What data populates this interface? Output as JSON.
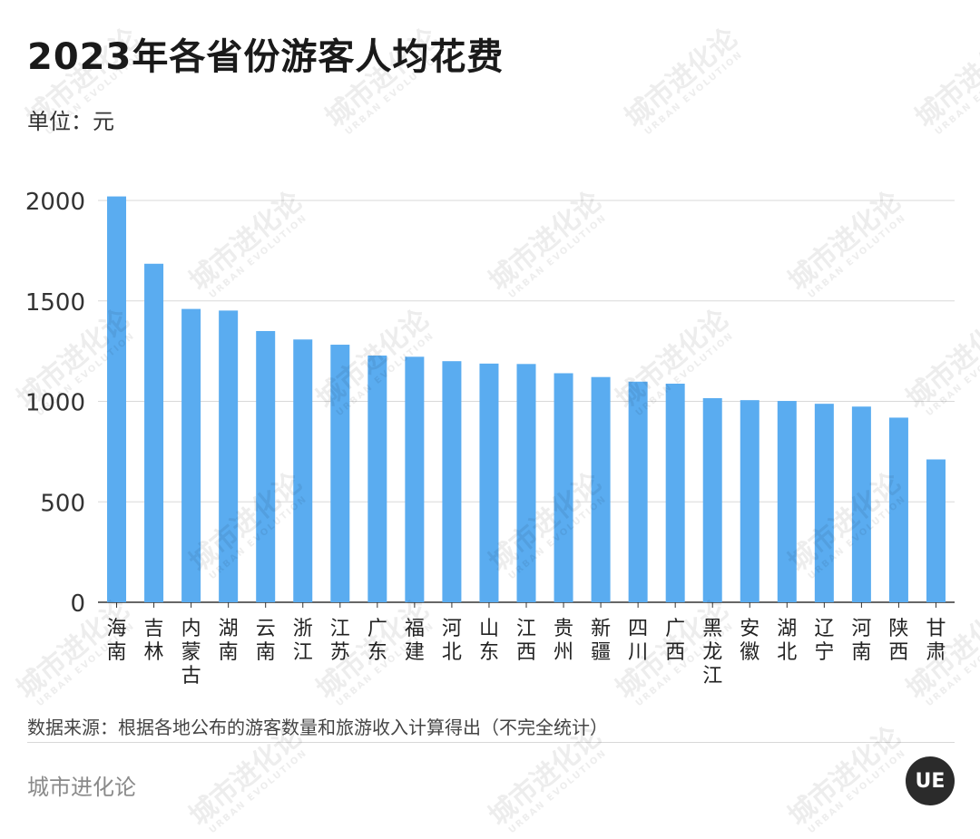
{
  "header": {
    "title": "2023年各省份游客人均花费",
    "unit": "单位：元"
  },
  "footer": {
    "source": "数据来源：根据各地公布的游客数量和旅游收入计算得出（不完全统计）",
    "brand": "城市进化论",
    "logo_text": "UE"
  },
  "watermark": {
    "text": "城市进化论",
    "sub": "URBAN EVOLUTION"
  },
  "colors": {
    "bar": "#5aacf0",
    "grid": "#d9d9d9",
    "axis": "#333333"
  },
  "chart_data": {
    "type": "bar",
    "title": "2023年各省份游客人均花费",
    "ylabel": "单位：元",
    "ylim": [
      0,
      2000
    ],
    "yticks": [
      0,
      500,
      1000,
      1500,
      2000
    ],
    "grid": true,
    "categories": [
      "海南",
      "吉林",
      "内蒙古",
      "湖南",
      "云南",
      "浙江",
      "江苏",
      "广东",
      "福建",
      "河北",
      "山东",
      "江西",
      "贵州",
      "新疆",
      "四川",
      "广西",
      "黑龙江",
      "安徽",
      "湖北",
      "辽宁",
      "河南",
      "陕西",
      "甘肃"
    ],
    "values": [
      2020,
      1685,
      1460,
      1452,
      1350,
      1308,
      1282,
      1228,
      1222,
      1200,
      1188,
      1186,
      1140,
      1121,
      1098,
      1088,
      1016,
      1006,
      1002,
      988,
      974,
      919,
      711
    ]
  }
}
